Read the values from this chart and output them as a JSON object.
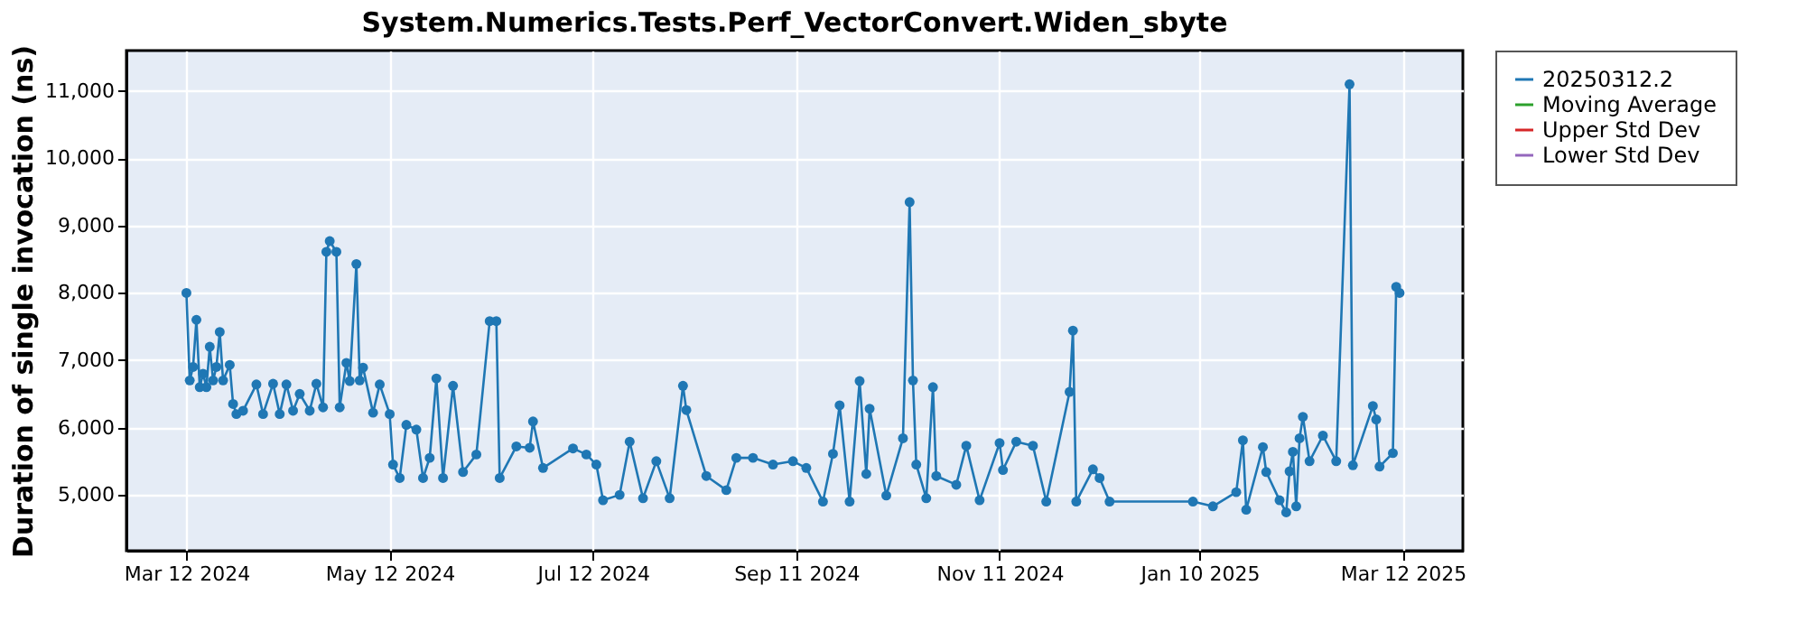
{
  "chart_data": {
    "type": "line",
    "title": "System.Numerics.Tests.Perf_VectorConvert.Widen_sbyte",
    "ylabel": "Duration of single invocation (ns)",
    "xlim": [
      "2024-02-23",
      "2025-03-30"
    ],
    "xticks": [
      {
        "value": "2024-03-12",
        "label": "Mar 12 2024"
      },
      {
        "value": "2024-05-12",
        "label": "May 12 2024"
      },
      {
        "value": "2024-07-12",
        "label": "Jul 12 2024"
      },
      {
        "value": "2024-09-11",
        "label": "Sep 11 2024"
      },
      {
        "value": "2024-11-11",
        "label": "Nov 11 2024"
      },
      {
        "value": "2025-01-10",
        "label": "Jan 10 2025"
      },
      {
        "value": "2025-03-12",
        "label": "Mar 12 2025"
      }
    ],
    "ylim": [
      4170,
      11600
    ],
    "yticks": [
      {
        "value": 5000,
        "label": "5,000"
      },
      {
        "value": 6000,
        "label": "6,000"
      },
      {
        "value": 7000,
        "label": "7,000"
      },
      {
        "value": 8000,
        "label": "8,000"
      },
      {
        "value": 9000,
        "label": "9,000"
      },
      {
        "value": 10000,
        "label": "10,000"
      },
      {
        "value": 11000,
        "label": "11,000"
      }
    ],
    "grid": true,
    "legend": "right",
    "marker": "circle",
    "line_style": "solid",
    "series": [
      {
        "name": "20250312.2",
        "color": "#1f77b4",
        "x": [
          "2024-03-12",
          "2024-03-13",
          "2024-03-14",
          "2024-03-15",
          "2024-03-16",
          "2024-03-17",
          "2024-03-18",
          "2024-03-19",
          "2024-03-20",
          "2024-03-21",
          "2024-03-22",
          "2024-03-23",
          "2024-03-25",
          "2024-03-26",
          "2024-03-27",
          "2024-03-29",
          "2024-04-02",
          "2024-04-04",
          "2024-04-07",
          "2024-04-09",
          "2024-04-11",
          "2024-04-13",
          "2024-04-15",
          "2024-04-18",
          "2024-04-20",
          "2024-04-22",
          "2024-04-23",
          "2024-04-24",
          "2024-04-26",
          "2024-04-27",
          "2024-04-29",
          "2024-04-30",
          "2024-05-02",
          "2024-05-03",
          "2024-05-04",
          "2024-05-07",
          "2024-05-09",
          "2024-05-12",
          "2024-05-13",
          "2024-05-15",
          "2024-05-17",
          "2024-05-20",
          "2024-05-22",
          "2024-05-24",
          "2024-05-26",
          "2024-05-28",
          "2024-05-31",
          "2024-06-03",
          "2024-06-07",
          "2024-06-11",
          "2024-06-13",
          "2024-06-14",
          "2024-06-19",
          "2024-06-23",
          "2024-06-24",
          "2024-06-27",
          "2024-07-06",
          "2024-07-10",
          "2024-07-13",
          "2024-07-15",
          "2024-07-20",
          "2024-07-23",
          "2024-07-27",
          "2024-07-31",
          "2024-08-04",
          "2024-08-08",
          "2024-08-09",
          "2024-08-15",
          "2024-08-21",
          "2024-08-24",
          "2024-08-29",
          "2024-09-04",
          "2024-09-10",
          "2024-09-14",
          "2024-09-19",
          "2024-09-22",
          "2024-09-24",
          "2024-09-27",
          "2024-09-30",
          "2024-10-02",
          "2024-10-03",
          "2024-10-08",
          "2024-10-13",
          "2024-10-15",
          "2024-10-16",
          "2024-10-17",
          "2024-10-20",
          "2024-10-22",
          "2024-10-23",
          "2024-10-29",
          "2024-11-01",
          "2024-11-05",
          "2024-11-11",
          "2024-11-12",
          "2024-11-16",
          "2024-11-21",
          "2024-11-25",
          "2024-12-02",
          "2024-12-03",
          "2024-12-04",
          "2024-12-09",
          "2024-12-11",
          "2024-12-14",
          "2025-01-08",
          "2025-01-14",
          "2025-01-21",
          "2025-01-23",
          "2025-01-24",
          "2025-01-29",
          "2025-01-30",
          "2025-02-03",
          "2025-02-05",
          "2025-02-06",
          "2025-02-07",
          "2025-02-08",
          "2025-02-09",
          "2025-02-10",
          "2025-02-12",
          "2025-02-16",
          "2025-02-20",
          "2025-02-24",
          "2025-02-25",
          "2025-03-03",
          "2025-03-04",
          "2025-03-05",
          "2025-03-09",
          "2025-03-10",
          "2025-03-11"
        ],
        "values": [
          8000,
          6700,
          6900,
          7600,
          6600,
          6800,
          6600,
          7200,
          6700,
          6900,
          7420,
          6700,
          6930,
          6350,
          6200,
          6250,
          6640,
          6200,
          6650,
          6200,
          6640,
          6250,
          6500,
          6250,
          6650,
          6300,
          8610,
          8770,
          8610,
          6300,
          6960,
          6690,
          8430,
          6700,
          6890,
          6220,
          6640,
          6200,
          5450,
          5250,
          6040,
          5970,
          5250,
          5550,
          6730,
          5250,
          6620,
          5340,
          5600,
          7580,
          7580,
          5250,
          5720,
          5700,
          6090,
          5400,
          5690,
          5600,
          5450,
          4920,
          5000,
          5790,
          4950,
          5500,
          4950,
          6620,
          6260,
          5280,
          5070,
          5550,
          5550,
          5450,
          5500,
          5400,
          4900,
          5610,
          6330,
          4900,
          6690,
          5310,
          6280,
          4990,
          5840,
          9350,
          6700,
          5450,
          4950,
          6600,
          5280,
          5150,
          5730,
          4920,
          5770,
          5370,
          5790,
          5730,
          4900,
          6530,
          7440,
          4900,
          5380,
          5250,
          4900,
          4900,
          4830,
          5040,
          5810,
          4780,
          5710,
          5340,
          4920,
          4740,
          5350,
          5640,
          4830,
          5840,
          6160,
          5500,
          5880,
          5500,
          11100,
          5440,
          6320,
          6120,
          5420,
          5620,
          8090,
          8000
        ]
      },
      {
        "name": "Moving Average",
        "color": "#2ca02c"
      },
      {
        "name": "Upper Std Dev",
        "color": "#d62728"
      },
      {
        "name": "Lower Std Dev",
        "color": "#9467bd"
      }
    ]
  }
}
